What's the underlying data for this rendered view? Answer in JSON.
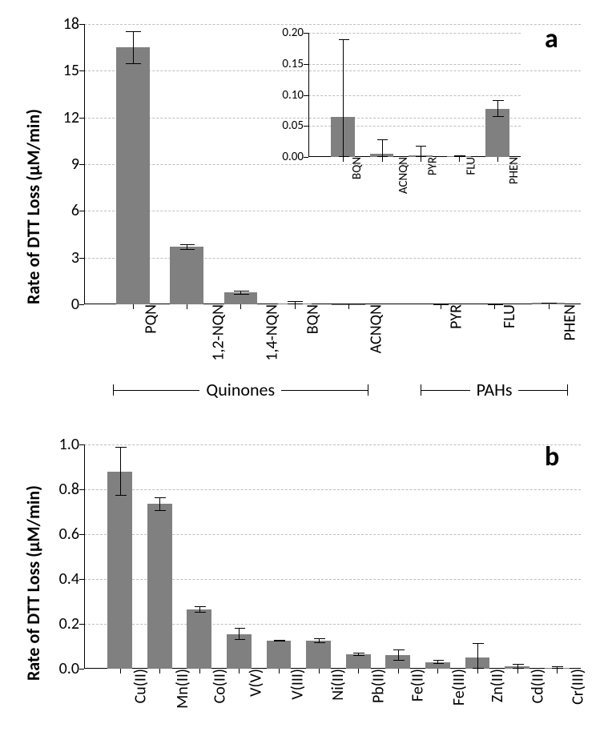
{
  "global": {
    "background_color": "#ffffff",
    "bar_color": "#808080",
    "grid_color": "#bfbfbf",
    "axis_color": "#000000",
    "text_color": "#000000",
    "error_bar_color": "#000000",
    "font_family": "Calibri, Arial, sans-serif"
  },
  "panel_a": {
    "label": "a",
    "label_fontsize": 34,
    "y_axis_label": "Rate of DTT Loss (µM/min)",
    "y_axis_label_fontsize": 22,
    "tick_fontsize": 20,
    "xlabel_fontsize": 20,
    "ylim": [
      0,
      18
    ],
    "ytick_step": 3,
    "categories": [
      "PQN",
      "1,2-NQN",
      "1,4-NQN",
      "BQN",
      "ACNQN",
      "PYR",
      "FLU",
      "PHEN"
    ],
    "values": [
      16.5,
      3.7,
      0.75,
      0.065,
      0.005,
      0.003,
      0.001,
      0.078
    ],
    "errors": [
      1.05,
      0.18,
      0.12,
      0.125,
      0.023,
      0.015,
      0.002,
      0.013
    ],
    "gap_after_index": 4,
    "group_labels": {
      "left": "Quinones",
      "right": "PAHs",
      "fontsize": 22
    },
    "inset": {
      "ylim": [
        0.0,
        0.2
      ],
      "ytick_step": 0.05,
      "decimals": 2,
      "tick_fontsize": 15,
      "xlabel_fontsize": 15,
      "categories": [
        "BQN",
        "ACNQN",
        "PYR",
        "FLU",
        "PHEN"
      ],
      "values": [
        0.065,
        0.005,
        0.003,
        0.001,
        0.078
      ],
      "errors": [
        0.125,
        0.023,
        0.015,
        0.002,
        0.013
      ]
    }
  },
  "panel_b": {
    "label": "b",
    "label_fontsize": 34,
    "y_axis_label": "Rate of DTT Loss (µM/min)",
    "y_axis_label_fontsize": 22,
    "tick_fontsize": 20,
    "xlabel_fontsize": 20,
    "ylim": [
      0.0,
      1.0
    ],
    "ytick_step": 0.2,
    "decimals": 1,
    "categories": [
      "Cu(II)",
      "Mn(II)",
      "Co(II)",
      "V(V)",
      "V(III)",
      "Ni(II)",
      "Pb(II)",
      "Fe(II)",
      "Fe(III)",
      "Zn(II)",
      "Cd(II)",
      "Cr(III)"
    ],
    "values": [
      0.88,
      0.735,
      0.265,
      0.155,
      0.125,
      0.125,
      0.065,
      0.06,
      0.03,
      0.05,
      0.01,
      0.005
    ],
    "errors": [
      0.11,
      0.03,
      0.015,
      0.028,
      0.005,
      0.01,
      0.008,
      0.025,
      0.01,
      0.065,
      0.012,
      0.005
    ]
  }
}
